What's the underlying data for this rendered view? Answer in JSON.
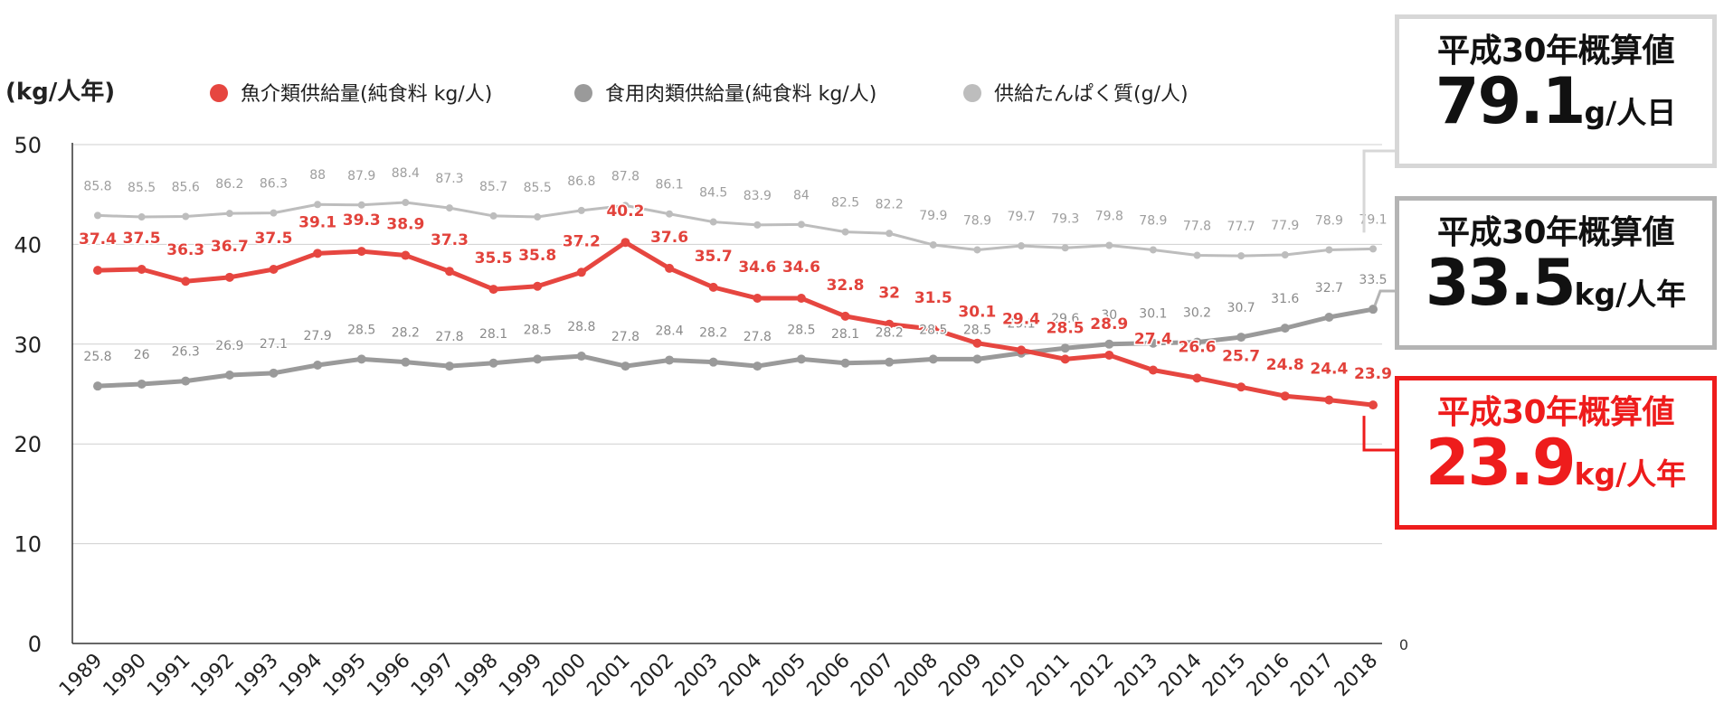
{
  "chart_data": {
    "type": "line",
    "unit_label": "(kg/人年)",
    "categories": [
      "1989",
      "1990",
      "1991",
      "1992",
      "1993",
      "1994",
      "1995",
      "1996",
      "1997",
      "1998",
      "1999",
      "2000",
      "2001",
      "2002",
      "2003",
      "2004",
      "2005",
      "2006",
      "2007",
      "2008",
      "2009",
      "2010",
      "2011",
      "2012",
      "2013",
      "2014",
      "2015",
      "2016",
      "2017",
      "2018"
    ],
    "ylim": [
      0,
      50
    ],
    "yticks": [
      0,
      10,
      20,
      30,
      40,
      50
    ],
    "right_axis_tick": "0",
    "grid": true,
    "legend_position": "top",
    "series": [
      {
        "name": "魚介類供給量(純食料 kg/人)",
        "color": "#e64640",
        "values": [
          37.4,
          37.5,
          36.3,
          36.7,
          37.5,
          39.1,
          39.3,
          38.9,
          37.3,
          35.5,
          35.8,
          37.2,
          40.2,
          37.6,
          35.7,
          34.6,
          34.6,
          32.8,
          32,
          31.5,
          30.1,
          29.4,
          28.5,
          28.9,
          27.4,
          26.6,
          25.7,
          24.8,
          24.4,
          23.9
        ],
        "labels": [
          "37.4",
          "37.5",
          "36.3",
          "36.7",
          "37.5",
          "39.1",
          "39.3",
          "38.9",
          "37.3",
          "35.5",
          "35.8",
          "37.2",
          "40.2",
          "37.6",
          "35.7",
          "34.6",
          "34.6",
          "32.8",
          "32",
          "31.5",
          "30.1",
          "29.4",
          "28.5",
          "28.9",
          "27.4",
          "26.6",
          "25.7",
          "24.8",
          "24.4",
          "23.9"
        ]
      },
      {
        "name": "食用肉類供給量(純食料 kg/人)",
        "color": "#9a9a9a",
        "values": [
          25.8,
          26,
          26.3,
          26.9,
          27.1,
          27.9,
          28.5,
          28.2,
          27.8,
          28.1,
          28.5,
          28.8,
          27.8,
          28.4,
          28.2,
          27.8,
          28.5,
          28.1,
          28.2,
          28.5,
          28.5,
          29.1,
          29.6,
          30,
          30.1,
          30.2,
          30.7,
          31.6,
          32.7,
          33.5
        ],
        "labels": [
          "25.8",
          "26",
          "26.3",
          "26.9",
          "27.1",
          "27.9",
          "28.5",
          "28.2",
          "27.8",
          "28.1",
          "28.5",
          "28.8",
          "27.8",
          "28.4",
          "28.2",
          "27.8",
          "28.5",
          "28.1",
          "28.2",
          "28.5",
          "28.5",
          "29.1",
          "29.6",
          "30",
          "30.1",
          "30.2",
          "30.7",
          "31.6",
          "32.7",
          "33.5"
        ]
      },
      {
        "name": "供給たんぱく質(g/人)",
        "color": "#bdbdbd",
        "raw_values": [
          85.8,
          85.5,
          85.6,
          86.2,
          86.3,
          88,
          87.9,
          88.4,
          87.3,
          85.7,
          85.5,
          86.8,
          87.8,
          86.1,
          84.5,
          83.9,
          84,
          82.5,
          82.2,
          79.9,
          78.9,
          79.7,
          79.3,
          79.8,
          78.9,
          77.8,
          77.7,
          77.9,
          78.9,
          79.1
        ],
        "labels": [
          "85.8",
          "85.5",
          "85.6",
          "86.2",
          "86.3",
          "88",
          "87.9",
          "88.4",
          "87.3",
          "85.7",
          "85.5",
          "86.8",
          "87.8",
          "86.1",
          "84.5",
          "83.9",
          "84",
          "82.5",
          "82.2",
          "79.9",
          "78.9",
          "79.7",
          "79.3",
          "79.8",
          "78.9",
          "77.8",
          "77.7",
          "77.9",
          "78.9",
          "79.1"
        ]
      }
    ]
  },
  "callouts": {
    "protein": {
      "title": "平成30年概算値",
      "value": "79.1",
      "unit": "g/人日",
      "color": "#111111"
    },
    "meat": {
      "title": "平成30年概算値",
      "value": "33.5",
      "unit": "kg/人年",
      "color": "#111111"
    },
    "fish": {
      "title": "平成30年概算値",
      "value": "23.9",
      "unit": "kg/人年",
      "color": "#ee1c1c"
    }
  }
}
